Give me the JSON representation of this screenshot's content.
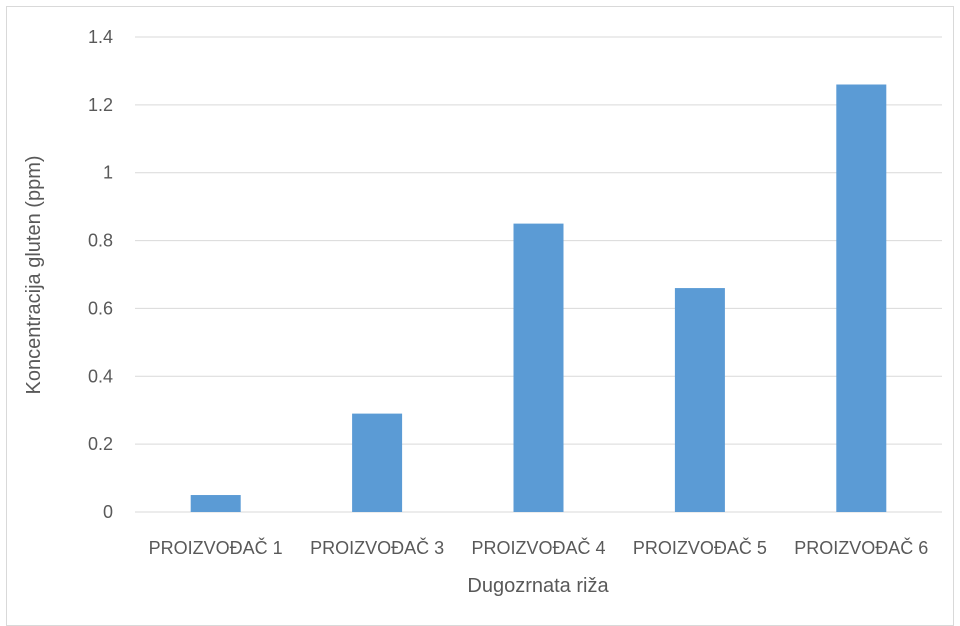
{
  "chart_data": {
    "type": "bar",
    "title": "",
    "xlabel": "Dugozrnata riža",
    "ylabel": "Koncentracija gluten (ppm)",
    "categories": [
      "PROIZVOĐAČ 1",
      "PROIZVOĐAČ 3",
      "PROIZVOĐAČ 4",
      "PROIZVOĐAČ 5",
      "PROIZVOĐAČ 6"
    ],
    "values": [
      0.05,
      0.29,
      0.85,
      0.66,
      1.26
    ],
    "ylim": [
      0,
      1.4
    ],
    "yticks": [
      "0",
      "0.2",
      "0.4",
      "0.6",
      "0.8",
      "1",
      "1.2",
      "1.4"
    ],
    "grid": true,
    "legend": "none",
    "bar_color": "#5b9bd5",
    "grid_color": "#d9d9d9"
  }
}
